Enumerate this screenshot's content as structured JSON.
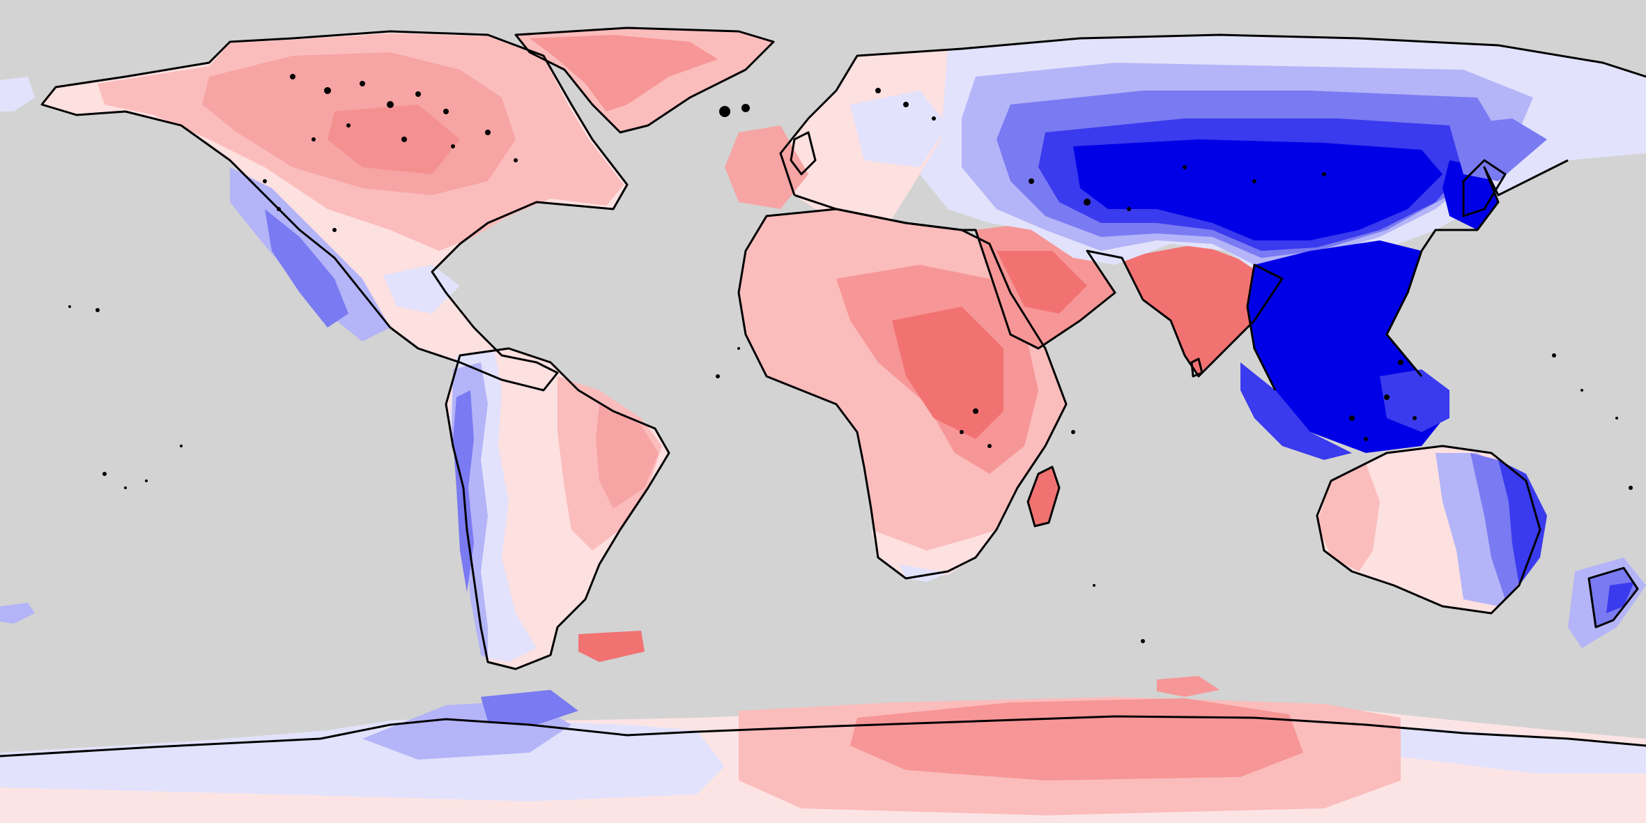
{
  "map": {
    "projection": "equirectangular",
    "ocean_color": "#d3d3d3",
    "coastline_color": "#000000",
    "palette": {
      "deep_blue": "#0000e6",
      "blue": "#3a3aee",
      "mid_blue": "#7a7af2",
      "light_blue": "#b4b4f8",
      "pale_blue": "#e2e2fc",
      "white": "#f6f2f4",
      "pale_red": "#fde0e0",
      "light_red": "#fbbcbc",
      "mid_red": "#f79696",
      "red": "#f27272"
    },
    "regions": [
      "north-america",
      "greenland",
      "south-america",
      "europe",
      "africa",
      "arabia",
      "india",
      "asia",
      "southeast-asia",
      "australia",
      "new-zealand",
      "madagascar",
      "antarctica"
    ]
  }
}
